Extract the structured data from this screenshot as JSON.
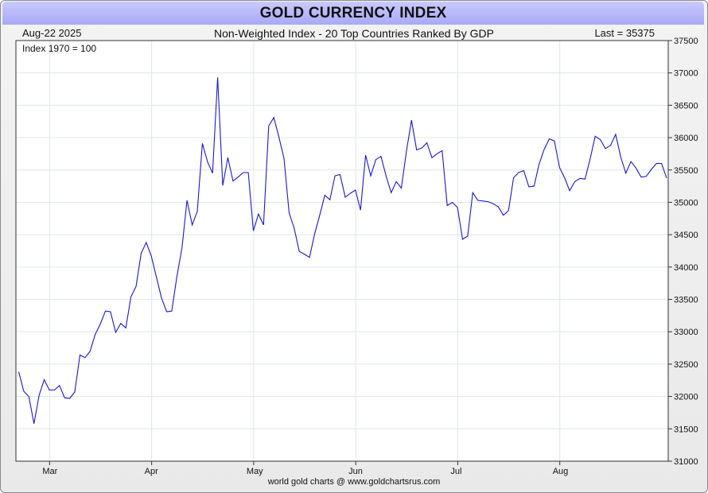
{
  "header": {
    "title": "GOLD CURRENCY INDEX",
    "date": "Aug-22  2025",
    "subtitle": "Non-Weighted Index - 20 Top Countries Ranked By GDP",
    "last_value": "Last = 35375"
  },
  "footer": {
    "credit": "world gold charts @ www.goldchartsrus.com"
  },
  "colors": {
    "line": "#1b17d6",
    "grid": "#dfe6ec",
    "title_bg": "#b6b6fa"
  },
  "chart_data": {
    "type": "line",
    "annotation": "Index 1970 = 100",
    "ylim": [
      31000,
      37500
    ],
    "ytick_labels": [
      "31000",
      "31500",
      "32000",
      "32500",
      "33000",
      "33500",
      "34000",
      "34500",
      "35000",
      "35500",
      "36000",
      "36500",
      "37000",
      "37500"
    ],
    "x_month_labels": [
      "Mar",
      "Apr",
      "May",
      "Jun",
      "Jul",
      "Aug"
    ],
    "grid": true,
    "series": [
      {
        "values": [
          32380,
          32080,
          32000,
          31580,
          32020,
          32260,
          32100,
          32100,
          32170,
          31980,
          31970,
          32070,
          32640,
          32600,
          32700,
          32960,
          33120,
          33320,
          33310,
          32990,
          33130,
          33060,
          33540,
          33700,
          34210,
          34380,
          34170,
          33840,
          33520,
          33310,
          33320,
          33850,
          34290,
          35030,
          34650,
          34860,
          35910,
          35630,
          35450,
          36930,
          35260,
          35690,
          35330,
          35390,
          35460,
          35460,
          34560,
          34820,
          34650,
          36180,
          36310,
          36010,
          35680,
          34840,
          34600,
          34240,
          34200,
          34150,
          34510,
          34800,
          35110,
          35040,
          35410,
          35430,
          35080,
          35140,
          35190,
          34880,
          35730,
          35410,
          35660,
          35710,
          35410,
          35150,
          35320,
          35220,
          35790,
          36270,
          35810,
          35840,
          35920,
          35690,
          35750,
          35800,
          34950,
          35000,
          34920,
          34430,
          34480,
          35150,
          35030,
          35020,
          35010,
          34980,
          34930,
          34800,
          34870,
          35380,
          35460,
          35490,
          35240,
          35250,
          35590,
          35820,
          35980,
          35950,
          35540,
          35380,
          35180,
          35320,
          35370,
          35360,
          35670,
          36020,
          35970,
          35830,
          35880,
          36050,
          35700,
          35450,
          35630,
          35530,
          35390,
          35400,
          35510,
          35600,
          35600,
          35375
        ]
      }
    ]
  }
}
